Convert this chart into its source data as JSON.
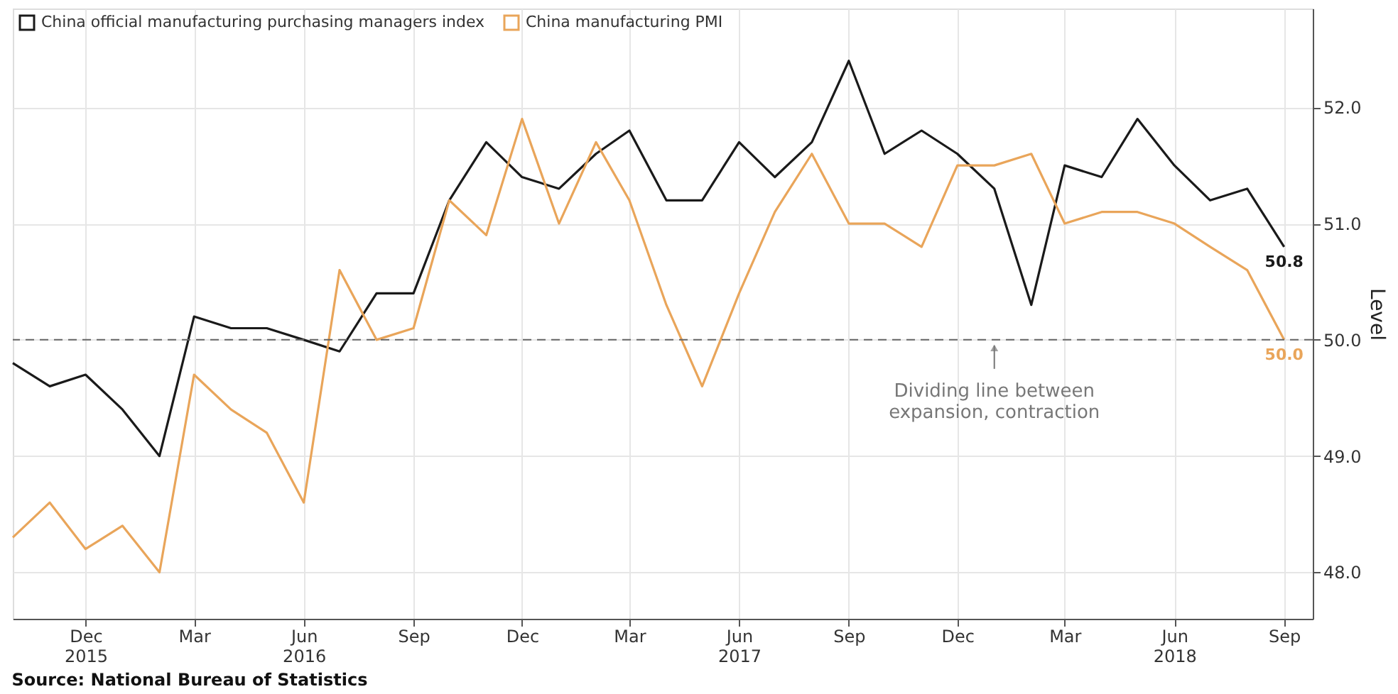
{
  "chart_data": {
    "type": "line",
    "x": [
      "2015-10",
      "2015-11",
      "2015-12",
      "2016-01",
      "2016-02",
      "2016-03",
      "2016-04",
      "2016-05",
      "2016-06",
      "2016-07",
      "2016-08",
      "2016-09",
      "2016-10",
      "2016-11",
      "2016-12",
      "2017-01",
      "2017-02",
      "2017-03",
      "2017-04",
      "2017-05",
      "2017-06",
      "2017-07",
      "2017-08",
      "2017-09",
      "2017-10",
      "2017-11",
      "2017-12",
      "2018-01",
      "2018-02",
      "2018-03",
      "2018-04",
      "2018-05",
      "2018-06",
      "2018-07",
      "2018-08",
      "2018-09"
    ],
    "series": [
      {
        "name": "China official manufacturing purchasing managers index",
        "color": "#1a1a1a",
        "values": [
          49.8,
          49.6,
          49.7,
          49.4,
          49.0,
          50.2,
          50.1,
          50.1,
          50.0,
          49.9,
          50.4,
          50.4,
          51.2,
          51.7,
          51.4,
          51.3,
          51.6,
          51.8,
          51.2,
          51.2,
          51.7,
          51.4,
          51.7,
          52.4,
          51.6,
          51.8,
          51.6,
          51.3,
          50.3,
          51.5,
          51.4,
          51.9,
          51.5,
          51.2,
          51.3,
          50.8
        ],
        "value_labels": [
          null,
          null,
          null,
          null,
          null,
          null,
          null,
          null,
          null,
          null,
          null,
          null,
          null,
          null,
          null,
          null,
          null,
          null,
          null,
          null,
          null,
          null,
          null,
          null,
          null,
          null,
          null,
          null,
          null,
          null,
          null,
          null,
          null,
          null,
          null,
          "50.8"
        ]
      },
      {
        "name": "China manufacturing PMI",
        "color": "#e9a55a",
        "values": [
          48.3,
          48.6,
          48.2,
          48.4,
          48.0,
          49.7,
          49.4,
          49.2,
          48.6,
          50.6,
          50.0,
          50.1,
          51.2,
          50.9,
          51.9,
          51.0,
          51.7,
          51.2,
          50.3,
          49.6,
          50.4,
          51.1,
          51.6,
          51.0,
          51.0,
          50.8,
          51.5,
          51.5,
          51.6,
          51.0,
          51.1,
          51.1,
          51.0,
          50.8,
          50.6,
          50.0
        ],
        "value_labels": [
          null,
          null,
          null,
          null,
          null,
          null,
          null,
          null,
          null,
          null,
          null,
          null,
          null,
          null,
          null,
          null,
          null,
          null,
          null,
          null,
          null,
          null,
          null,
          null,
          null,
          null,
          null,
          null,
          null,
          null,
          null,
          null,
          null,
          null,
          null,
          "50.0"
        ]
      }
    ],
    "xlim": [
      "2015-10-01",
      "2018-09-25"
    ],
    "xticks": [
      {
        "value": "2015-12",
        "label": "Dec\n2015"
      },
      {
        "value": "2016-03",
        "label": "Mar"
      },
      {
        "value": "2016-06",
        "label": "Jun\n2016"
      },
      {
        "value": "2016-09",
        "label": "Sep"
      },
      {
        "value": "2016-12",
        "label": "Dec"
      },
      {
        "value": "2017-03",
        "label": "Mar"
      },
      {
        "value": "2017-06",
        "label": "Jun\n2017"
      },
      {
        "value": "2017-09",
        "label": "Sep"
      },
      {
        "value": "2017-12",
        "label": "Dec"
      },
      {
        "value": "2018-03",
        "label": "Mar"
      },
      {
        "value": "2018-06",
        "label": "Jun\n2018"
      },
      {
        "value": "2018-09",
        "label": "Sep"
      }
    ],
    "ylim": [
      47.6,
      52.85
    ],
    "yticks": [
      {
        "value": 48,
        "label": "48.0"
      },
      {
        "value": 49,
        "label": "49.0"
      },
      {
        "value": 50,
        "label": "50.0"
      },
      {
        "value": 51,
        "label": "51.0"
      },
      {
        "value": 52,
        "label": "52.0"
      }
    ],
    "ylabel": "Level",
    "ref_lines": [
      {
        "axis": "y",
        "value": 50,
        "line_style": "dashed",
        "color": "#666666"
      }
    ],
    "annotations": [
      {
        "text": "Dividing line between\nexpansion, contraction",
        "x": "2018-01",
        "y": 50
      },
      "Source: National Bureau of Statistics"
    ],
    "grid": true,
    "legend": "top left",
    "line_style": "solid"
  }
}
